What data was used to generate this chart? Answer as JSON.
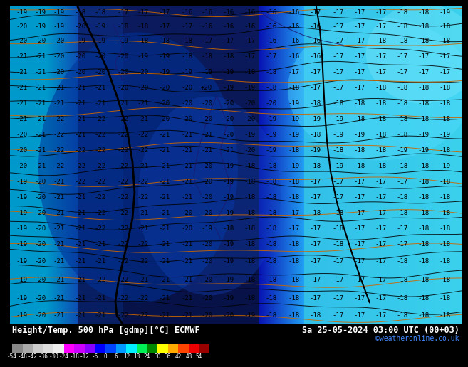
{
  "title_left": "Height/Temp. 500 hPa [gdmp][°C] ECMWF",
  "title_right": "Sa 25-05-2024 03:00 UTC (00+03)",
  "credit": "©weatheronline.co.uk",
  "colorbar_values": [
    -54,
    -48,
    -42,
    -36,
    -30,
    -24,
    -18,
    -12,
    -6,
    0,
    6,
    12,
    18,
    24,
    30,
    36,
    42,
    48,
    54
  ],
  "colorbar_colors": [
    "#888888",
    "#aaaaaa",
    "#cccccc",
    "#dddddd",
    "#eeeeee",
    "#ff00ff",
    "#cc00ff",
    "#8800ff",
    "#0000ff",
    "#0044ff",
    "#0099ff",
    "#00eeff",
    "#00ee55",
    "#008800",
    "#ffff00",
    "#ffaa00",
    "#ff4400",
    "#ee0000",
    "#990000"
  ],
  "bg_color_dark": "#0033aa",
  "bg_color_mid": "#0055cc",
  "bg_color_cyan_dark": "#0099cc",
  "bg_color_cyan": "#00ccee",
  "bg_color_light": "#44ddff",
  "bg_color_very_light": "#88eeff",
  "label_color": "#000000",
  "contour_black": "#000000",
  "contour_navy": "#000033",
  "contour_orange": "#cc6600",
  "coastline_color": "#1a1a6e",
  "label_fontsize": 6.5,
  "title_fontsize": 8.5,
  "credit_fontsize": 7,
  "colorbar_label_fontsize": 5.5,
  "map_rows": [
    [
      "-19",
      "-19",
      "-19",
      "-18",
      "-18",
      "-17",
      "-17",
      "-17",
      "-16",
      "-16",
      "-16",
      "-16",
      "-16",
      "-16",
      "-17",
      "-17",
      "-17",
      "-17",
      "-18",
      "-18",
      "-19"
    ],
    [
      "-20",
      "-19",
      "-19",
      "-20",
      "-19",
      "-18",
      "-18",
      "-17",
      "-17",
      "-16",
      "-16",
      "-16",
      "-16",
      "-16",
      "-16",
      "-17",
      "-17",
      "-17",
      "-18",
      "-18",
      "-18"
    ],
    [
      "-20",
      "-20",
      "-20",
      "-19",
      "-19",
      "-19",
      "-18",
      "-18",
      "-18",
      "-17",
      "-17",
      "-17",
      "-16",
      "-16",
      "-16",
      "-17",
      "-17",
      "-18",
      "-18",
      "-18",
      "-18"
    ],
    [
      "-21",
      "-21",
      "-20",
      "-20",
      "-20",
      "-20",
      "-19",
      "-19",
      "-18",
      "-18",
      "-18",
      "-17",
      "-17",
      "-16",
      "-16",
      "-17",
      "-17",
      "-17",
      "-17",
      "-17",
      "-17"
    ],
    [
      "-21",
      "-21",
      "-20",
      "-20",
      "-20",
      "-20",
      "-20",
      "-19",
      "-19",
      "-19",
      "-19",
      "-18",
      "-18",
      "-17",
      "-17",
      "-17",
      "-17",
      "-17",
      "-17",
      "-17",
      "-17"
    ],
    [
      "-21",
      "-21",
      "-21",
      "-21",
      "-21",
      "-20",
      "-20",
      "-20",
      "-20",
      "+20",
      "-19",
      "-19",
      "-18",
      "-18",
      "-17",
      "-17",
      "-17",
      "-18",
      "-18",
      "-18",
      "-18"
    ],
    [
      "-21",
      "-21",
      "-21",
      "-21",
      "-21",
      "-21",
      "-21",
      "-20",
      "-20",
      "-20",
      "-20",
      "-20",
      "-20",
      "-19",
      "-18",
      "-18",
      "-18",
      "-18",
      "-18",
      "-18",
      "-18"
    ],
    [
      "-21",
      "-21",
      "-22",
      "-21",
      "-22",
      "-22",
      "-21",
      "-20",
      "-20",
      "-20",
      "-20",
      "-20",
      "-19",
      "-19",
      "-19",
      "-19",
      "-18",
      "-18",
      "-18",
      "-18",
      "-18"
    ],
    [
      "-20",
      "-21",
      "-22",
      "-21",
      "-22",
      "-22",
      "-22",
      "-21",
      "-21",
      "-21",
      "-20",
      "-19",
      "-19",
      "-19",
      "-18",
      "-19",
      "-19",
      "-18",
      "-18",
      "-19",
      "-19"
    ],
    [
      "-20",
      "-21",
      "-22",
      "-22",
      "-22",
      "-22",
      "-22",
      "-21",
      "-21",
      "-21",
      "-21",
      "-20",
      "-19",
      "-18",
      "-19",
      "-18",
      "-18",
      "-18",
      "-19",
      "-19",
      "-18"
    ],
    [
      "-20",
      "-21",
      "-22",
      "-22",
      "-22",
      "-22",
      "-21",
      "-21",
      "-21",
      "-20",
      "-19",
      "-18",
      "-18",
      "-19",
      "-18",
      "-19",
      "-18",
      "-18",
      "-18",
      "-18",
      "-19"
    ],
    [
      "-19",
      "-20",
      "-21",
      "-22",
      "-22",
      "-22",
      "-22",
      "-21",
      "-21",
      "-20",
      "-19",
      "-18",
      "-18",
      "-18",
      "-17",
      "-17",
      "-17",
      "-17",
      "-17",
      "-18",
      "-18"
    ],
    [
      "-19",
      "-20",
      "-21",
      "-21",
      "-22",
      "-22",
      "-22",
      "-21",
      "-21",
      "-20",
      "-19",
      "-18",
      "-18",
      "-18",
      "-17",
      "-17",
      "-17",
      "-17",
      "-18",
      "-18",
      "-18"
    ],
    [
      "-19",
      "-20",
      "-21",
      "-21",
      "-22",
      "-22",
      "-21",
      "-21",
      "-20",
      "-20",
      "-19",
      "-18",
      "-18",
      "-17",
      "-18",
      "-18",
      "-17",
      "-17",
      "-18",
      "-18",
      "-18"
    ],
    [
      "-19",
      "-20",
      "-21",
      "-21",
      "-22",
      "-22",
      "-21",
      "-21",
      "-20",
      "-19",
      "-18",
      "-18",
      "-18",
      "-17",
      "-17",
      "-18",
      "-17",
      "-17",
      "-17",
      "-18",
      "-18"
    ],
    [
      "-19",
      "-20",
      "-21",
      "-21",
      "-21",
      "-22",
      "-22",
      "-21",
      "-21",
      "-20",
      "-19",
      "-18",
      "-18",
      "-18",
      "-17",
      "-18",
      "-17",
      "-17",
      "-17",
      "-18",
      "-18"
    ],
    [
      "-19",
      "-20",
      "-21",
      "-21",
      "-21",
      "-22",
      "-22",
      "-21",
      "-21",
      "-20",
      "-19",
      "-18",
      "-18",
      "-18",
      "-17",
      "-17",
      "-17",
      "-17",
      "-18",
      "-18",
      "-18"
    ]
  ]
}
